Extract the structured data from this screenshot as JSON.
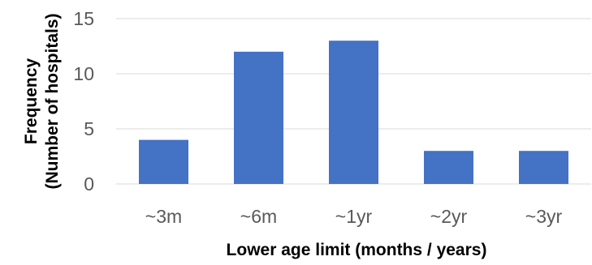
{
  "chart_data": {
    "type": "bar",
    "categories": [
      "~3m",
      "~6m",
      "~1yr",
      "~2yr",
      "~3yr"
    ],
    "values": [
      4,
      12,
      13,
      3,
      3
    ],
    "xlabel": "Lower age limit (months / years)",
    "ylabel_lines": [
      "Frequency",
      "(Number of hospitals)"
    ],
    "ylim": [
      0,
      15
    ],
    "yticks": [
      0,
      5,
      10,
      15
    ],
    "grid": true,
    "legend": "none",
    "bar_color": "#4472C4",
    "grid_color": "#D9D9D9"
  }
}
